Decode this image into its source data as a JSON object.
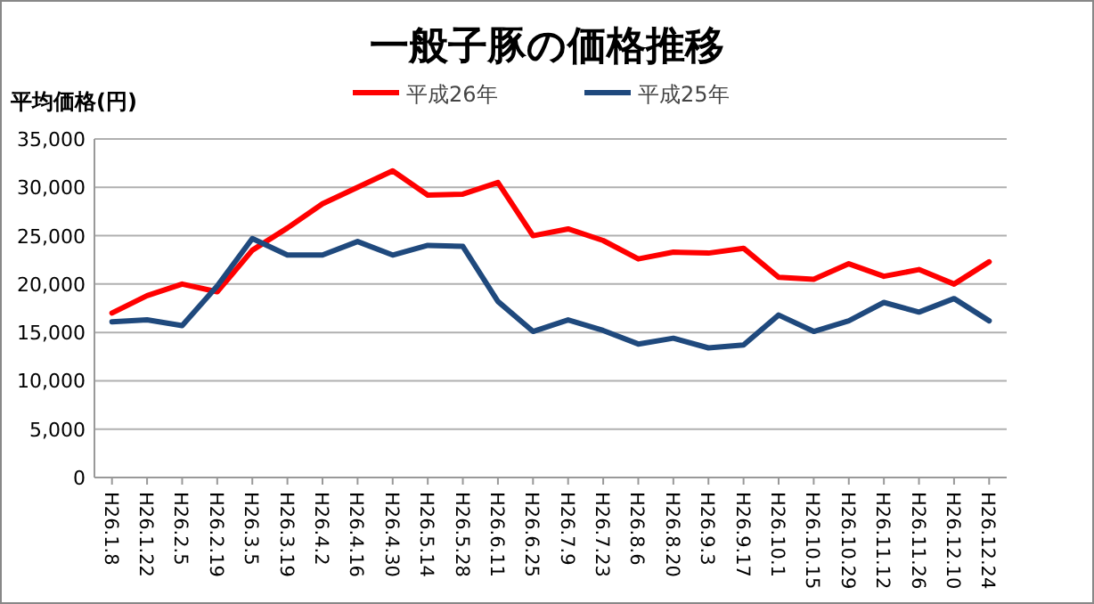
{
  "chart_data": {
    "type": "line",
    "title": "一般子豚の価格推移",
    "ylabel": "平均価格(円)",
    "categories": [
      "H26.1.8",
      "H26.1.22",
      "H26.2.5",
      "H26.2.19",
      "H26.3.5",
      "H26.3.19",
      "H26.4.2",
      "H26.4.16",
      "H26.4.30",
      "H26.5.14",
      "H26.5.28",
      "H26.6.11",
      "H26.6.25",
      "H26.7.9",
      "H26.7.23",
      "H26.8.6",
      "H26.8.20",
      "H26.9.3",
      "H26.9.17",
      "H26.10.1",
      "H26.10.15",
      "H26.10.29",
      "H26.11.12",
      "H26.11.26",
      "H26.12.10",
      "H26.12.24"
    ],
    "series": [
      {
        "name": "平成26年",
        "color": "#ff0000",
        "values": [
          17000,
          18800,
          20000,
          19200,
          23500,
          25800,
          28300,
          30000,
          31700,
          29200,
          29300,
          30500,
          25000,
          25700,
          24500,
          22600,
          23300,
          23200,
          23700,
          20700,
          20500,
          22100,
          20800,
          21500,
          20000,
          22300
        ]
      },
      {
        "name": "平成25年",
        "color": "#1f497d",
        "values": [
          16100,
          16300,
          15700,
          19800,
          24700,
          23000,
          23000,
          24400,
          23000,
          24000,
          23900,
          18200,
          15100,
          16300,
          15200,
          13800,
          14400,
          13400,
          13700,
          16800,
          15100,
          16200,
          18100,
          17100,
          18500,
          16200
        ]
      }
    ],
    "ylim": [
      0,
      35000
    ],
    "yticks": [
      {
        "value": 0,
        "label": "0"
      },
      {
        "value": 5000,
        "label": "5,000"
      },
      {
        "value": 10000,
        "label": "10,000"
      },
      {
        "value": 15000,
        "label": "15,000"
      },
      {
        "value": 20000,
        "label": "20,000"
      },
      {
        "value": 25000,
        "label": "25,000"
      },
      {
        "value": 30000,
        "label": "30,000"
      },
      {
        "value": 35000,
        "label": "35,000"
      }
    ],
    "grid": "y",
    "legend": "top",
    "marker": "none",
    "line_style": "solid"
  }
}
